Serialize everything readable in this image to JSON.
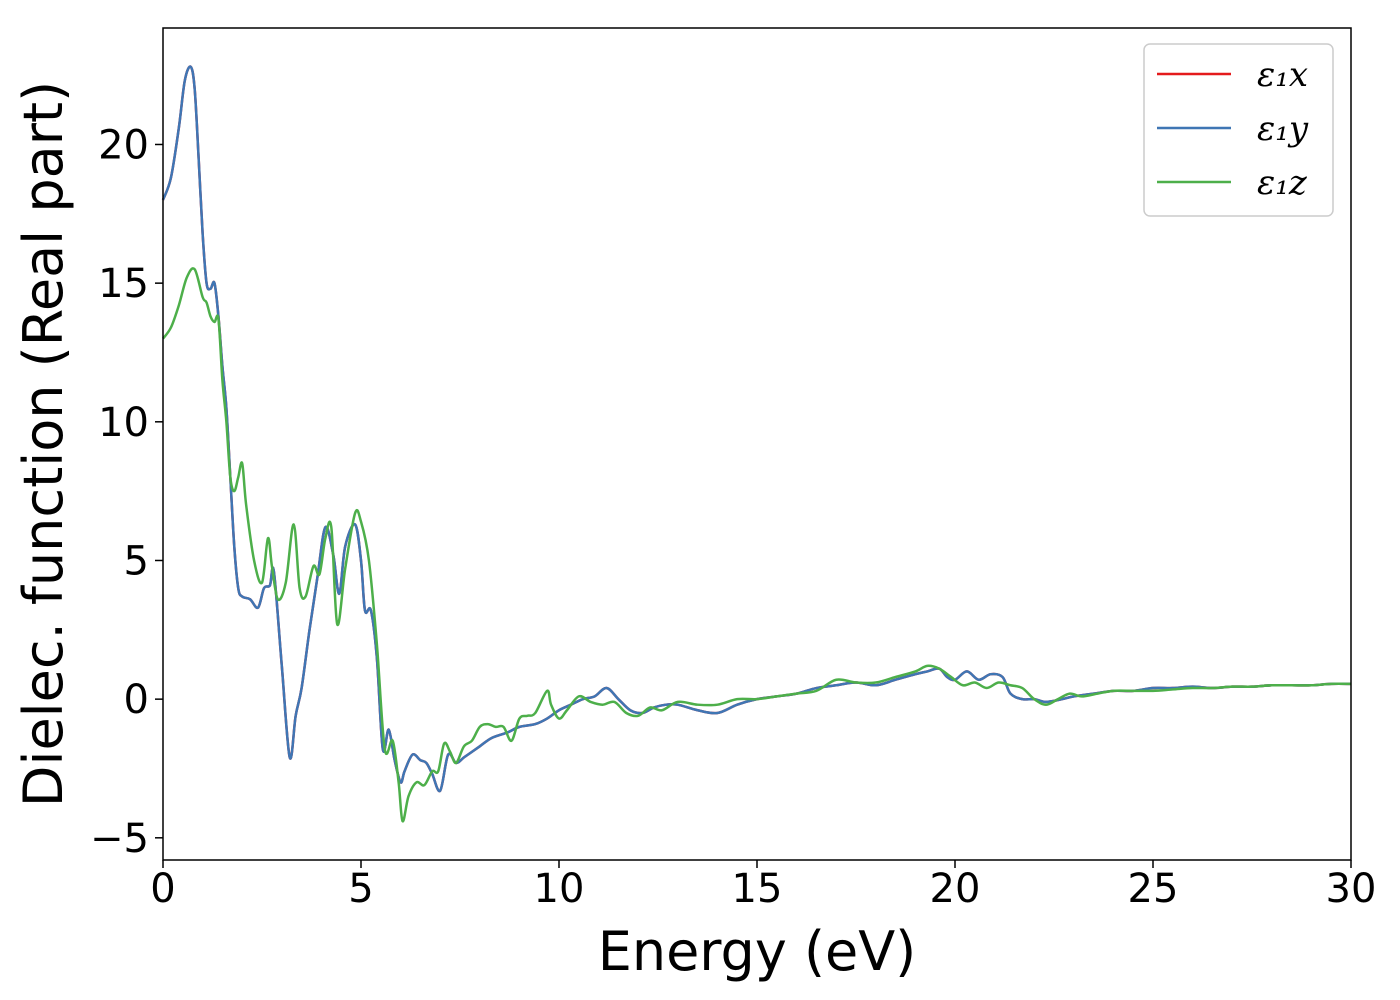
{
  "chart_data": {
    "type": "line",
    "title": "",
    "xlabel": "Energy (eV)",
    "ylabel": "Dielec. function (Real part)",
    "xlim": [
      0,
      30
    ],
    "ylim": [
      -5.8,
      24.2
    ],
    "xticks": [
      0,
      5,
      10,
      15,
      20,
      25,
      30
    ],
    "xtick_labels": [
      "0",
      "5",
      "10",
      "15",
      "20",
      "25",
      "30"
    ],
    "yticks": [
      -5,
      0,
      5,
      10,
      15,
      20
    ],
    "ytick_labels": [
      "−5",
      "0",
      "5",
      "10",
      "15",
      "20"
    ],
    "grid": false,
    "legend_position": "top-right",
    "series": [
      {
        "name": "ε₁x",
        "color": "#e41a1c",
        "x": [
          0,
          0.2,
          0.4,
          0.55,
          0.7,
          0.8,
          0.9,
          1.0,
          1.1,
          1.2,
          1.3,
          1.4,
          1.5,
          1.6,
          1.7,
          1.8,
          1.9,
          2.0,
          2.2,
          2.4,
          2.55,
          2.7,
          2.8,
          3.0,
          3.2,
          3.35,
          3.5,
          3.7,
          3.9,
          4.1,
          4.3,
          4.45,
          4.6,
          4.85,
          5.0,
          5.1,
          5.25,
          5.4,
          5.55,
          5.7,
          5.85,
          6.0,
          6.1,
          6.3,
          6.5,
          6.65,
          6.8,
          7.0,
          7.2,
          7.4,
          7.6,
          7.8,
          8.0,
          8.3,
          8.7,
          9.0,
          9.4,
          9.7,
          10.0,
          10.3,
          10.6,
          10.9,
          11.2,
          11.5,
          11.8,
          12.1,
          12.4,
          12.7,
          13.0,
          13.5,
          14.0,
          14.5,
          15.0,
          15.5,
          16.0,
          16.5,
          17.0,
          17.5,
          18.0,
          18.5,
          19.0,
          19.3,
          19.6,
          19.8,
          20.0,
          20.3,
          20.6,
          20.9,
          21.2,
          21.4,
          21.7,
          22.0,
          22.3,
          22.7,
          23.0,
          23.5,
          24.0,
          24.5,
          25.0,
          25.5,
          26.0,
          26.5,
          27.0,
          27.5,
          28.0,
          28.5,
          29.0,
          29.5,
          30.0
        ],
        "y": [
          18.0,
          18.8,
          20.6,
          22.3,
          22.8,
          22.0,
          19.5,
          16.8,
          15.0,
          14.8,
          15.0,
          13.8,
          12.0,
          10.5,
          8.0,
          5.5,
          4.0,
          3.7,
          3.6,
          3.3,
          4.0,
          4.1,
          4.6,
          1.2,
          -2.1,
          -0.6,
          0.4,
          2.5,
          4.4,
          6.2,
          5.2,
          3.8,
          5.5,
          6.3,
          5.0,
          3.2,
          3.2,
          1.5,
          -1.8,
          -1.1,
          -2.2,
          -3.0,
          -2.6,
          -2.0,
          -2.2,
          -2.3,
          -2.7,
          -3.3,
          -2.0,
          -2.3,
          -2.1,
          -1.9,
          -1.7,
          -1.4,
          -1.2,
          -1.0,
          -0.9,
          -0.7,
          -0.4,
          -0.2,
          0.0,
          0.1,
          0.4,
          0.0,
          -0.4,
          -0.5,
          -0.3,
          -0.2,
          -0.2,
          -0.4,
          -0.5,
          -0.2,
          0.0,
          0.1,
          0.2,
          0.4,
          0.5,
          0.6,
          0.5,
          0.7,
          0.9,
          1.0,
          1.1,
          0.8,
          0.7,
          1.0,
          0.7,
          0.9,
          0.8,
          0.2,
          0.0,
          0.0,
          -0.1,
          0.0,
          0.1,
          0.2,
          0.3,
          0.3,
          0.4,
          0.4,
          0.45,
          0.4,
          0.45,
          0.45,
          0.5,
          0.5,
          0.5,
          0.55,
          0.55
        ]
      },
      {
        "name": "ε₁y",
        "color": "#3f76b4",
        "x": [
          0,
          0.2,
          0.4,
          0.55,
          0.7,
          0.8,
          0.9,
          1.0,
          1.1,
          1.2,
          1.3,
          1.4,
          1.5,
          1.6,
          1.7,
          1.8,
          1.9,
          2.0,
          2.2,
          2.4,
          2.55,
          2.7,
          2.8,
          3.0,
          3.2,
          3.35,
          3.5,
          3.7,
          3.9,
          4.1,
          4.3,
          4.45,
          4.6,
          4.85,
          5.0,
          5.1,
          5.25,
          5.4,
          5.55,
          5.7,
          5.85,
          6.0,
          6.1,
          6.3,
          6.5,
          6.65,
          6.8,
          7.0,
          7.2,
          7.4,
          7.6,
          7.8,
          8.0,
          8.3,
          8.7,
          9.0,
          9.4,
          9.7,
          10.0,
          10.3,
          10.6,
          10.9,
          11.2,
          11.5,
          11.8,
          12.1,
          12.4,
          12.7,
          13.0,
          13.5,
          14.0,
          14.5,
          15.0,
          15.5,
          16.0,
          16.5,
          17.0,
          17.5,
          18.0,
          18.5,
          19.0,
          19.3,
          19.6,
          19.8,
          20.0,
          20.3,
          20.6,
          20.9,
          21.2,
          21.4,
          21.7,
          22.0,
          22.3,
          22.7,
          23.0,
          23.5,
          24.0,
          24.5,
          25.0,
          25.5,
          26.0,
          26.5,
          27.0,
          27.5,
          28.0,
          28.5,
          29.0,
          29.5,
          30.0
        ],
        "y": [
          18.0,
          18.8,
          20.6,
          22.3,
          22.8,
          22.0,
          19.5,
          16.8,
          15.0,
          14.8,
          15.0,
          13.8,
          12.0,
          10.5,
          8.0,
          5.5,
          4.0,
          3.7,
          3.6,
          3.3,
          4.0,
          4.1,
          4.6,
          1.2,
          -2.1,
          -0.6,
          0.4,
          2.5,
          4.4,
          6.2,
          5.2,
          3.8,
          5.5,
          6.3,
          5.0,
          3.2,
          3.2,
          1.5,
          -1.8,
          -1.1,
          -2.2,
          -3.0,
          -2.6,
          -2.0,
          -2.2,
          -2.3,
          -2.7,
          -3.3,
          -2.0,
          -2.3,
          -2.1,
          -1.9,
          -1.7,
          -1.4,
          -1.2,
          -1.0,
          -0.9,
          -0.7,
          -0.4,
          -0.2,
          0.0,
          0.1,
          0.4,
          0.0,
          -0.4,
          -0.5,
          -0.3,
          -0.2,
          -0.2,
          -0.4,
          -0.5,
          -0.2,
          0.0,
          0.1,
          0.2,
          0.4,
          0.5,
          0.6,
          0.5,
          0.7,
          0.9,
          1.0,
          1.1,
          0.8,
          0.7,
          1.0,
          0.7,
          0.9,
          0.8,
          0.2,
          0.0,
          0.0,
          -0.1,
          0.0,
          0.1,
          0.2,
          0.3,
          0.3,
          0.4,
          0.4,
          0.45,
          0.4,
          0.45,
          0.45,
          0.5,
          0.5,
          0.5,
          0.55,
          0.55
        ]
      },
      {
        "name": "ε₁z",
        "color": "#4daf4a",
        "x": [
          0,
          0.2,
          0.4,
          0.6,
          0.8,
          1.0,
          1.1,
          1.2,
          1.3,
          1.4,
          1.5,
          1.6,
          1.7,
          1.8,
          1.9,
          2.0,
          2.1,
          2.3,
          2.5,
          2.65,
          2.75,
          2.9,
          3.1,
          3.3,
          3.45,
          3.6,
          3.8,
          3.95,
          4.1,
          4.25,
          4.4,
          4.6,
          4.85,
          5.0,
          5.2,
          5.4,
          5.6,
          5.8,
          5.95,
          6.05,
          6.2,
          6.4,
          6.6,
          6.8,
          6.95,
          7.1,
          7.25,
          7.4,
          7.6,
          7.8,
          8.0,
          8.2,
          8.4,
          8.6,
          8.8,
          9.0,
          9.2,
          9.4,
          9.7,
          9.8,
          10.0,
          10.2,
          10.5,
          10.8,
          11.1,
          11.4,
          11.7,
          12.0,
          12.3,
          12.6,
          13.0,
          13.5,
          14.0,
          14.5,
          15.0,
          15.5,
          16.0,
          16.5,
          17.0,
          17.5,
          18.0,
          18.5,
          19.0,
          19.3,
          19.6,
          19.9,
          20.2,
          20.5,
          20.8,
          21.1,
          21.4,
          21.7,
          22.0,
          22.3,
          22.6,
          22.9,
          23.2,
          23.6,
          24.0,
          24.5,
          25.0,
          25.5,
          26.0,
          26.5,
          27.0,
          27.5,
          28.0,
          28.5,
          29.0,
          29.5,
          30.0
        ],
        "y": [
          13.0,
          13.4,
          14.2,
          15.2,
          15.5,
          14.5,
          14.3,
          13.8,
          13.6,
          13.7,
          11.5,
          10.0,
          8.0,
          7.5,
          8.0,
          8.5,
          7.0,
          5.0,
          4.2,
          5.8,
          4.8,
          3.6,
          4.2,
          6.3,
          4.0,
          3.7,
          4.8,
          4.5,
          5.8,
          6.2,
          2.7,
          4.7,
          6.7,
          6.4,
          5.0,
          2.0,
          -1.8,
          -1.5,
          -3.0,
          -4.4,
          -3.5,
          -3.0,
          -3.1,
          -2.6,
          -2.6,
          -1.6,
          -1.9,
          -2.3,
          -1.7,
          -1.5,
          -1.0,
          -0.9,
          -1.0,
          -1.0,
          -1.5,
          -0.7,
          -0.6,
          -0.5,
          0.3,
          -0.2,
          -0.7,
          -0.4,
          0.1,
          -0.1,
          -0.2,
          -0.1,
          -0.5,
          -0.6,
          -0.3,
          -0.4,
          -0.1,
          -0.2,
          -0.2,
          0.0,
          0.0,
          0.1,
          0.2,
          0.3,
          0.7,
          0.6,
          0.6,
          0.8,
          1.0,
          1.2,
          1.1,
          0.8,
          0.5,
          0.6,
          0.4,
          0.6,
          0.5,
          0.4,
          0.0,
          -0.2,
          0.0,
          0.2,
          0.1,
          0.2,
          0.3,
          0.3,
          0.3,
          0.35,
          0.4,
          0.4,
          0.45,
          0.45,
          0.5,
          0.5,
          0.5,
          0.55,
          0.55
        ]
      }
    ]
  }
}
